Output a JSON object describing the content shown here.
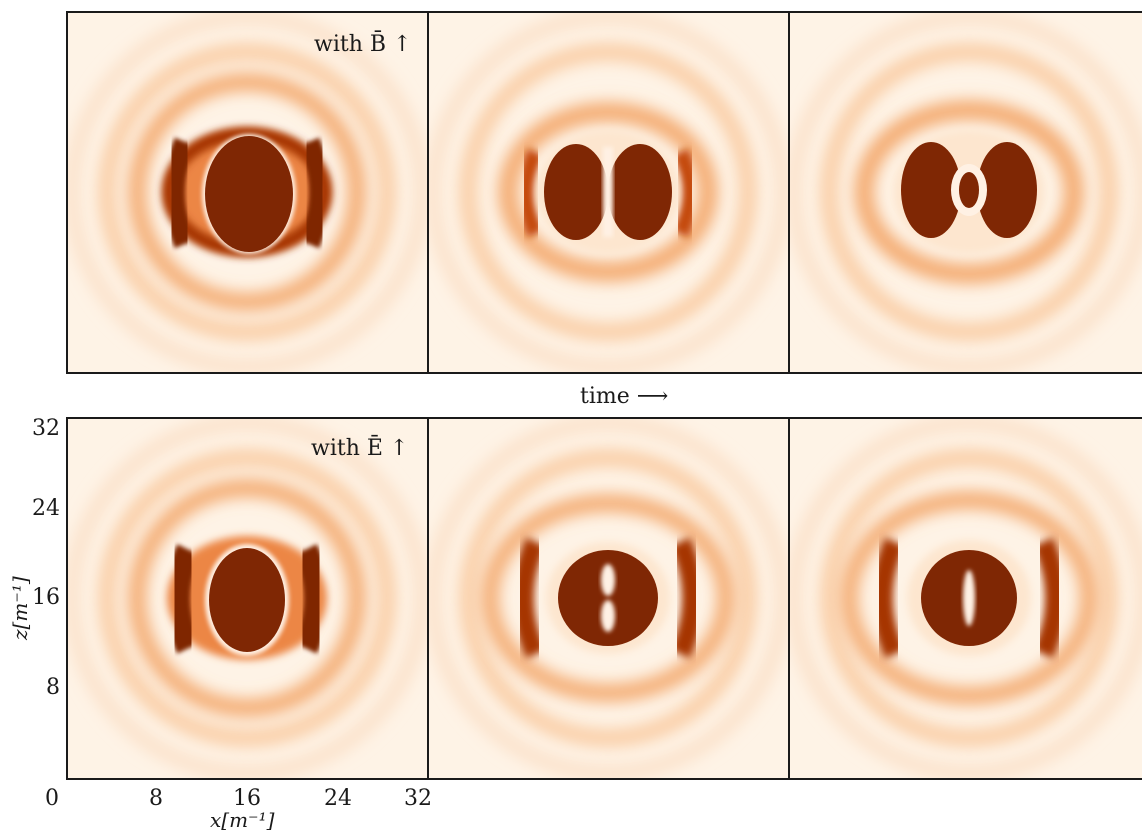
{
  "figure": {
    "top_row_annotation": "with B̄ ↑",
    "bottom_row_annotation": "with Ē ↑",
    "time_label": "time ⟶",
    "x_axis_label": "x[m⁻¹]",
    "y_axis_label": "z[m⁻¹]",
    "x_ticks": [
      "0",
      "8",
      "16",
      "24",
      "32"
    ],
    "y_ticks": [
      "32",
      "24",
      "16",
      "8"
    ],
    "colors": {
      "background": "#fef3e6",
      "ring": "#f09a5a",
      "core": "#7f2704",
      "frame": "#1a1a1a"
    }
  }
}
